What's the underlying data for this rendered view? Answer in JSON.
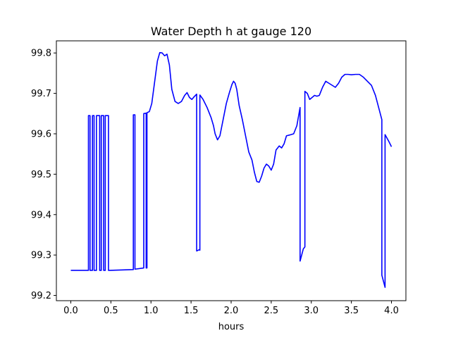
{
  "chart_data": {
    "type": "line",
    "title": "Water Depth h at gauge 120",
    "xlabel": "hours",
    "ylabel": "",
    "xlim": [
      -0.18,
      4.18
    ],
    "ylim": [
      99.187,
      99.83
    ],
    "xticks": [
      0.0,
      0.5,
      1.0,
      1.5,
      2.0,
      2.5,
      3.0,
      3.5,
      4.0
    ],
    "xtick_labels": [
      "0.0",
      "0.5",
      "1.0",
      "1.5",
      "2.0",
      "2.5",
      "3.0",
      "3.5",
      "4.0"
    ],
    "yticks": [
      99.2,
      99.3,
      99.4,
      99.5,
      99.6,
      99.7,
      99.8
    ],
    "ytick_labels": [
      "99.2",
      "99.3",
      "99.4",
      "99.5",
      "99.6",
      "99.7",
      "99.8"
    ],
    "grid": false,
    "series": [
      {
        "color": "#0000ff",
        "x": [
          0.0,
          0.22,
          0.22,
          0.24,
          0.24,
          0.27,
          0.27,
          0.29,
          0.29,
          0.32,
          0.32,
          0.36,
          0.36,
          0.38,
          0.38,
          0.41,
          0.41,
          0.43,
          0.43,
          0.47,
          0.47,
          0.49,
          0.49,
          0.78,
          0.78,
          0.8,
          0.8,
          0.91,
          0.91,
          0.94,
          0.94,
          0.95,
          0.95,
          0.98,
          1.01,
          1.04,
          1.08,
          1.11,
          1.14,
          1.17,
          1.2,
          1.23,
          1.26,
          1.3,
          1.34,
          1.38,
          1.42,
          1.45,
          1.48,
          1.51,
          1.54,
          1.57,
          1.57,
          1.6,
          1.61,
          1.61,
          1.65,
          1.7,
          1.75,
          1.78,
          1.8,
          1.83,
          1.86,
          1.9,
          1.94,
          1.98,
          2.01,
          2.03,
          2.05,
          2.07,
          2.1,
          2.14,
          2.18,
          2.22,
          2.26,
          2.29,
          2.32,
          2.35,
          2.38,
          2.41,
          2.44,
          2.47,
          2.5,
          2.53,
          2.56,
          2.6,
          2.63,
          2.66,
          2.69,
          2.73,
          2.78,
          2.82,
          2.86,
          2.86,
          2.88,
          2.9,
          2.92,
          2.92,
          2.95,
          2.98,
          3.01,
          3.04,
          3.07,
          3.1,
          3.14,
          3.18,
          3.22,
          3.26,
          3.3,
          3.34,
          3.38,
          3.42,
          3.46,
          3.5,
          3.55,
          3.6,
          3.65,
          3.7,
          3.75,
          3.8,
          3.84,
          3.88,
          3.88,
          3.92,
          3.92,
          3.97,
          4.0
        ],
        "y": [
          99.262,
          99.262,
          99.645,
          99.645,
          99.262,
          99.262,
          99.645,
          99.645,
          99.262,
          99.262,
          99.645,
          99.645,
          99.262,
          99.262,
          99.645,
          99.645,
          99.262,
          99.262,
          99.645,
          99.645,
          99.262,
          99.262,
          99.262,
          99.264,
          99.647,
          99.647,
          99.265,
          99.268,
          99.65,
          99.651,
          99.268,
          99.268,
          99.652,
          99.655,
          99.675,
          99.72,
          99.78,
          99.801,
          99.8,
          99.793,
          99.797,
          99.77,
          99.71,
          99.68,
          99.675,
          99.68,
          99.695,
          99.702,
          99.69,
          99.685,
          99.692,
          99.698,
          99.31,
          99.313,
          99.312,
          99.696,
          99.685,
          99.665,
          99.64,
          99.62,
          99.6,
          99.585,
          99.595,
          99.635,
          99.675,
          99.703,
          99.722,
          99.73,
          99.725,
          99.71,
          99.67,
          99.635,
          99.595,
          99.555,
          99.535,
          99.505,
          99.482,
          99.48,
          99.495,
          99.515,
          99.525,
          99.52,
          99.51,
          99.525,
          99.56,
          99.57,
          99.565,
          99.575,
          99.595,
          99.597,
          99.6,
          99.62,
          99.665,
          99.285,
          99.3,
          99.315,
          99.32,
          99.705,
          99.7,
          99.685,
          99.69,
          99.695,
          99.693,
          99.695,
          99.715,
          99.73,
          99.725,
          99.72,
          99.715,
          99.725,
          99.74,
          99.747,
          99.747,
          99.746,
          99.747,
          99.747,
          99.74,
          99.73,
          99.72,
          99.695,
          99.665,
          99.635,
          99.25,
          99.22,
          99.598,
          99.58,
          99.568
        ]
      }
    ]
  }
}
